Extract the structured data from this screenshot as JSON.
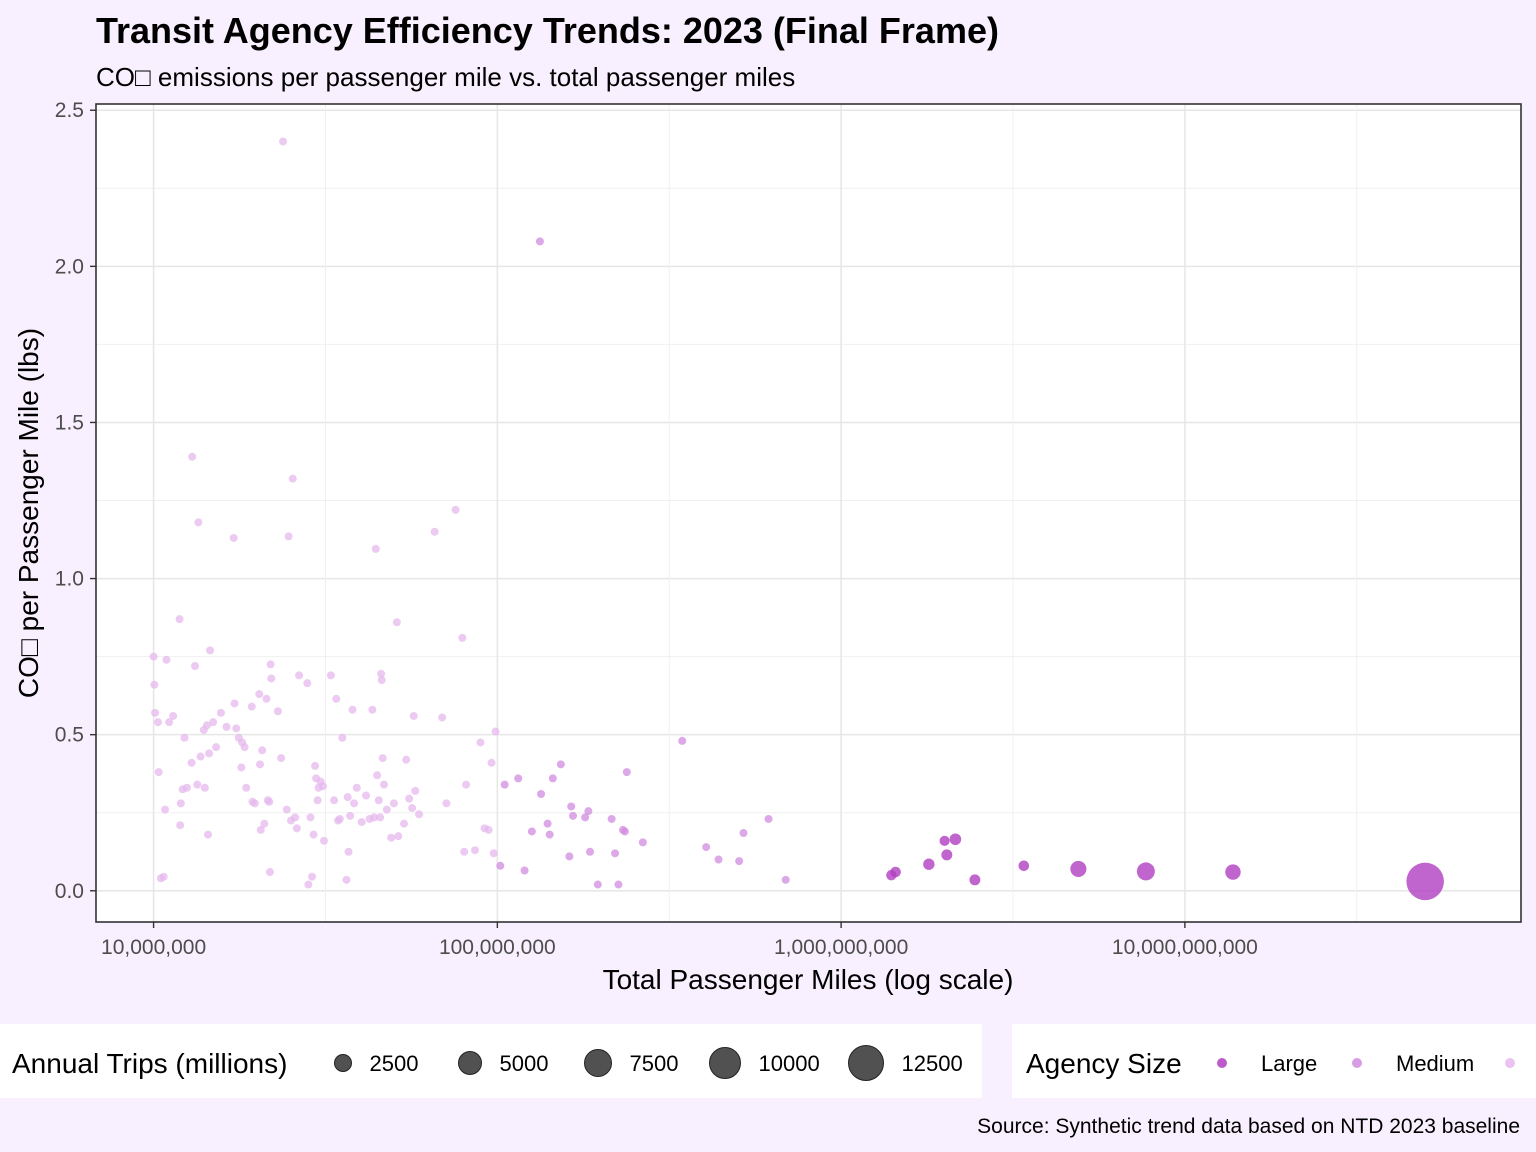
{
  "chart_data": {
    "type": "scatter",
    "title": "Transit Agency Efficiency Trends: 2023 (Final Frame)",
    "subtitle": "CO□ emissions per passenger mile vs. total passenger miles",
    "xlabel": "Total Passenger Miles (log scale)",
    "ylabel": "CO□ per Passenger Mile (lbs)",
    "caption": "Source: Synthetic trend data based on NTD 2023 baseline",
    "x_scale": "log10",
    "xlim": [
      6800000,
      95000000000
    ],
    "ylim": [
      -0.1,
      2.52
    ],
    "x_ticks": [
      10000000,
      100000000,
      1000000000,
      10000000000
    ],
    "x_tick_labels": [
      "10,000,000",
      "100,000,000",
      "1,000,000,000",
      "10,000,000,000"
    ],
    "y_ticks": [
      0.0,
      0.5,
      1.0,
      1.5,
      2.0,
      2.5
    ],
    "y_tick_labels": [
      "0.0",
      "0.5",
      "1.0",
      "1.5",
      "2.0",
      "2.5"
    ],
    "grid": true,
    "size_legend": {
      "title": "Annual Trips (millions)",
      "entries": [
        {
          "value": 2500,
          "label": "2500"
        },
        {
          "value": 5000,
          "label": "5000"
        },
        {
          "value": 7500,
          "label": "7500"
        },
        {
          "value": 10000,
          "label": "10000"
        },
        {
          "value": 12500,
          "label": "12500"
        }
      ]
    },
    "color_legend": {
      "title": "Agency Size",
      "entries": [
        {
          "label": "Large",
          "color": "#b03fc0"
        },
        {
          "label": "Medium",
          "color": "#d18be0"
        },
        {
          "label": "",
          "color": "#e6b8ee"
        }
      ]
    },
    "series": [
      {
        "name": "Large",
        "color": "#b03fc0",
        "opacity": 0.8,
        "points": [
          {
            "x": 1400000000,
            "y": 0.05,
            "trips": 500
          },
          {
            "x": 1440000000,
            "y": 0.06,
            "trips": 520
          },
          {
            "x": 1800000000,
            "y": 0.085,
            "trips": 600
          },
          {
            "x": 2000000000,
            "y": 0.16,
            "trips": 480
          },
          {
            "x": 2030000000,
            "y": 0.115,
            "trips": 560
          },
          {
            "x": 2150000000,
            "y": 0.165,
            "trips": 620
          },
          {
            "x": 2450000000,
            "y": 0.035,
            "trips": 550
          },
          {
            "x": 3400000000,
            "y": 0.08,
            "trips": 520
          },
          {
            "x": 4900000000,
            "y": 0.07,
            "trips": 1200
          },
          {
            "x": 7700000000,
            "y": 0.062,
            "trips": 1500
          },
          {
            "x": 13800000000,
            "y": 0.06,
            "trips": 1100
          },
          {
            "x": 50000000000,
            "y": 0.03,
            "trips": 6500
          }
        ]
      },
      {
        "name": "Medium",
        "color": "#d18be0",
        "opacity": 0.75,
        "points": [
          {
            "x": 102000000,
            "y": 0.08
          },
          {
            "x": 105000000,
            "y": 0.34
          },
          {
            "x": 115000000,
            "y": 0.36
          },
          {
            "x": 120000000,
            "y": 0.065
          },
          {
            "x": 126000000,
            "y": 0.19
          },
          {
            "x": 133000000,
            "y": 2.08
          },
          {
            "x": 134000000,
            "y": 0.31
          },
          {
            "x": 140000000,
            "y": 0.215
          },
          {
            "x": 142000000,
            "y": 0.18
          },
          {
            "x": 145000000,
            "y": 0.36
          },
          {
            "x": 153000000,
            "y": 0.405
          },
          {
            "x": 162000000,
            "y": 0.11
          },
          {
            "x": 164000000,
            "y": 0.27
          },
          {
            "x": 166000000,
            "y": 0.24
          },
          {
            "x": 180000000,
            "y": 0.235
          },
          {
            "x": 184000000,
            "y": 0.255
          },
          {
            "x": 186000000,
            "y": 0.125
          },
          {
            "x": 196000000,
            "y": 0.02
          },
          {
            "x": 215000000,
            "y": 0.23
          },
          {
            "x": 220000000,
            "y": 0.12
          },
          {
            "x": 225000000,
            "y": 0.02
          },
          {
            "x": 232000000,
            "y": 0.195
          },
          {
            "x": 235000000,
            "y": 0.19
          },
          {
            "x": 238000000,
            "y": 0.38
          },
          {
            "x": 265000000,
            "y": 0.155
          },
          {
            "x": 345000000,
            "y": 0.48
          },
          {
            "x": 405000000,
            "y": 0.14
          },
          {
            "x": 440000000,
            "y": 0.1
          },
          {
            "x": 505000000,
            "y": 0.095
          },
          {
            "x": 520000000,
            "y": 0.185
          },
          {
            "x": 615000000,
            "y": 0.23
          },
          {
            "x": 690000000,
            "y": 0.035
          }
        ]
      },
      {
        "name": "",
        "color": "#e6b8ee",
        "opacity": 0.75,
        "points": [
          {
            "x": 10000000,
            "y": 0.75
          },
          {
            "x": 10050000,
            "y": 0.66
          },
          {
            "x": 10100000,
            "y": 0.57
          },
          {
            "x": 10300000,
            "y": 0.54
          },
          {
            "x": 10350000,
            "y": 0.38
          },
          {
            "x": 10500000,
            "y": 0.04
          },
          {
            "x": 10700000,
            "y": 0.045
          },
          {
            "x": 10800000,
            "y": 0.26
          },
          {
            "x": 10900000,
            "y": 0.74
          },
          {
            "x": 11100000,
            "y": 0.54
          },
          {
            "x": 11400000,
            "y": 0.56
          },
          {
            "x": 11900000,
            "y": 0.87
          },
          {
            "x": 11950000,
            "y": 0.21
          },
          {
            "x": 12000000,
            "y": 0.28
          },
          {
            "x": 12150000,
            "y": 0.325
          },
          {
            "x": 12300000,
            "y": 0.49
          },
          {
            "x": 12500000,
            "y": 0.33
          },
          {
            "x": 12900000,
            "y": 0.41
          },
          {
            "x": 12950000,
            "y": 1.39
          },
          {
            "x": 13200000,
            "y": 0.72
          },
          {
            "x": 13400000,
            "y": 0.34
          },
          {
            "x": 13500000,
            "y": 1.18
          },
          {
            "x": 13700000,
            "y": 0.43
          },
          {
            "x": 14000000,
            "y": 0.515
          },
          {
            "x": 14100000,
            "y": 0.33
          },
          {
            "x": 14300000,
            "y": 0.53
          },
          {
            "x": 14400000,
            "y": 0.18
          },
          {
            "x": 14500000,
            "y": 0.44
          },
          {
            "x": 14600000,
            "y": 0.77
          },
          {
            "x": 14900000,
            "y": 0.54
          },
          {
            "x": 15200000,
            "y": 0.46
          },
          {
            "x": 15700000,
            "y": 0.57
          },
          {
            "x": 16300000,
            "y": 0.525
          },
          {
            "x": 17100000,
            "y": 1.13
          },
          {
            "x": 17200000,
            "y": 0.6
          },
          {
            "x": 17400000,
            "y": 0.52
          },
          {
            "x": 17700000,
            "y": 0.49
          },
          {
            "x": 18000000,
            "y": 0.395
          },
          {
            "x": 18100000,
            "y": 0.475
          },
          {
            "x": 18400000,
            "y": 0.46
          },
          {
            "x": 18600000,
            "y": 0.33
          },
          {
            "x": 19300000,
            "y": 0.59
          },
          {
            "x": 19400000,
            "y": 0.285
          },
          {
            "x": 19700000,
            "y": 0.28
          },
          {
            "x": 20300000,
            "y": 0.63
          },
          {
            "x": 20400000,
            "y": 0.405
          },
          {
            "x": 20500000,
            "y": 0.195
          },
          {
            "x": 20700000,
            "y": 0.45
          },
          {
            "x": 21000000,
            "y": 0.215
          },
          {
            "x": 21300000,
            "y": 0.615
          },
          {
            "x": 21500000,
            "y": 0.29
          },
          {
            "x": 21700000,
            "y": 0.285
          },
          {
            "x": 21800000,
            "y": 0.06
          },
          {
            "x": 21900000,
            "y": 0.725
          },
          {
            "x": 22000000,
            "y": 0.68
          },
          {
            "x": 23000000,
            "y": 0.575
          },
          {
            "x": 23500000,
            "y": 0.425
          },
          {
            "x": 23800000,
            "y": 2.4
          },
          {
            "x": 24400000,
            "y": 0.26
          },
          {
            "x": 24700000,
            "y": 1.135
          },
          {
            "x": 25100000,
            "y": 0.225
          },
          {
            "x": 25400000,
            "y": 1.32
          },
          {
            "x": 25800000,
            "y": 0.235
          },
          {
            "x": 26100000,
            "y": 0.2
          },
          {
            "x": 26500000,
            "y": 0.69
          },
          {
            "x": 28000000,
            "y": 0.665
          },
          {
            "x": 28200000,
            "y": 0.02
          },
          {
            "x": 28600000,
            "y": 0.235
          },
          {
            "x": 28900000,
            "y": 0.045
          },
          {
            "x": 29200000,
            "y": 0.18
          },
          {
            "x": 29500000,
            "y": 0.4
          },
          {
            "x": 29700000,
            "y": 0.36
          },
          {
            "x": 30000000,
            "y": 0.29
          },
          {
            "x": 30200000,
            "y": 0.33
          },
          {
            "x": 30600000,
            "y": 0.35
          },
          {
            "x": 31100000,
            "y": 0.335
          },
          {
            "x": 31300000,
            "y": 0.16
          },
          {
            "x": 32800000,
            "y": 0.69
          },
          {
            "x": 33500000,
            "y": 0.29
          },
          {
            "x": 34000000,
            "y": 0.615
          },
          {
            "x": 34400000,
            "y": 0.225
          },
          {
            "x": 34800000,
            "y": 0.23
          },
          {
            "x": 35400000,
            "y": 0.49
          },
          {
            "x": 36400000,
            "y": 0.035
          },
          {
            "x": 36700000,
            "y": 0.3
          },
          {
            "x": 36900000,
            "y": 0.125
          },
          {
            "x": 37300000,
            "y": 0.24
          },
          {
            "x": 37900000,
            "y": 0.58
          },
          {
            "x": 38300000,
            "y": 0.28
          },
          {
            "x": 39000000,
            "y": 0.33
          },
          {
            "x": 40300000,
            "y": 0.22
          },
          {
            "x": 41500000,
            "y": 0.305
          },
          {
            "x": 42500000,
            "y": 0.23
          },
          {
            "x": 43300000,
            "y": 0.58
          },
          {
            "x": 43800000,
            "y": 0.235
          },
          {
            "x": 44300000,
            "y": 1.095
          },
          {
            "x": 44700000,
            "y": 0.37
          },
          {
            "x": 45200000,
            "y": 0.29
          },
          {
            "x": 45600000,
            "y": 0.235
          },
          {
            "x": 45900000,
            "y": 0.695
          },
          {
            "x": 46100000,
            "y": 0.675
          },
          {
            "x": 46400000,
            "y": 0.425
          },
          {
            "x": 46800000,
            "y": 0.34
          },
          {
            "x": 47700000,
            "y": 0.26
          },
          {
            "x": 49100000,
            "y": 0.17
          },
          {
            "x": 50000000,
            "y": 0.28
          },
          {
            "x": 51000000,
            "y": 0.86
          },
          {
            "x": 51500000,
            "y": 0.175
          },
          {
            "x": 53500000,
            "y": 0.215
          },
          {
            "x": 54300000,
            "y": 0.42
          },
          {
            "x": 55400000,
            "y": 0.295
          },
          {
            "x": 56500000,
            "y": 0.265
          },
          {
            "x": 57100000,
            "y": 0.56
          },
          {
            "x": 57700000,
            "y": 0.32
          },
          {
            "x": 59200000,
            "y": 0.245
          },
          {
            "x": 65700000,
            "y": 1.15
          },
          {
            "x": 69100000,
            "y": 0.555
          },
          {
            "x": 71100000,
            "y": 0.28
          },
          {
            "x": 75600000,
            "y": 1.22
          },
          {
            "x": 79100000,
            "y": 0.81
          },
          {
            "x": 80100000,
            "y": 0.125
          },
          {
            "x": 81100000,
            "y": 0.34
          },
          {
            "x": 86100000,
            "y": 0.13
          },
          {
            "x": 89300000,
            "y": 0.475
          },
          {
            "x": 91800000,
            "y": 0.2
          },
          {
            "x": 94300000,
            "y": 0.195
          },
          {
            "x": 96200000,
            "y": 0.41
          },
          {
            "x": 97600000,
            "y": 0.12
          },
          {
            "x": 98800000,
            "y": 0.51
          }
        ]
      }
    ]
  }
}
